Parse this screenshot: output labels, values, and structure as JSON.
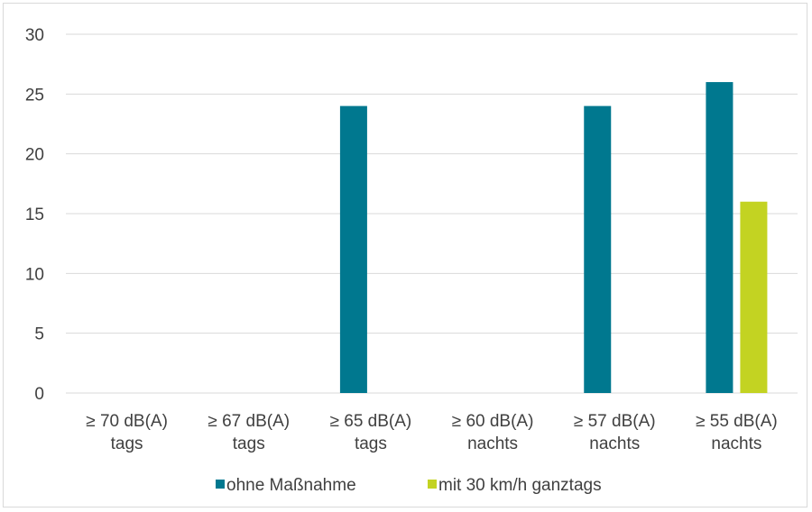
{
  "chart_data": {
    "type": "bar",
    "categories": [
      [
        "≥ 70 dB(A)",
        "tags"
      ],
      [
        "≥ 67 dB(A)",
        "tags"
      ],
      [
        "≥ 65 dB(A)",
        "tags"
      ],
      [
        "≥ 60 dB(A)",
        "nachts"
      ],
      [
        "≥ 57 dB(A)",
        "nachts"
      ],
      [
        "≥ 55 dB(A)",
        "nachts"
      ]
    ],
    "series": [
      {
        "name": "ohne Maßnahme",
        "color": "#00788f",
        "values": [
          0,
          0,
          24,
          0,
          24,
          26
        ]
      },
      {
        "name": "mit 30 km/h ganztags",
        "color": "#c3d322",
        "values": [
          0,
          0,
          0,
          0,
          0,
          16
        ]
      }
    ],
    "yticks": [
      "0",
      "5",
      "10",
      "15",
      "20",
      "25",
      "30"
    ],
    "ylim": [
      0,
      30
    ],
    "grid": true,
    "legend_position": "bottom",
    "colors": {
      "gridline": "#d9d9d9",
      "text": "#404040"
    }
  }
}
